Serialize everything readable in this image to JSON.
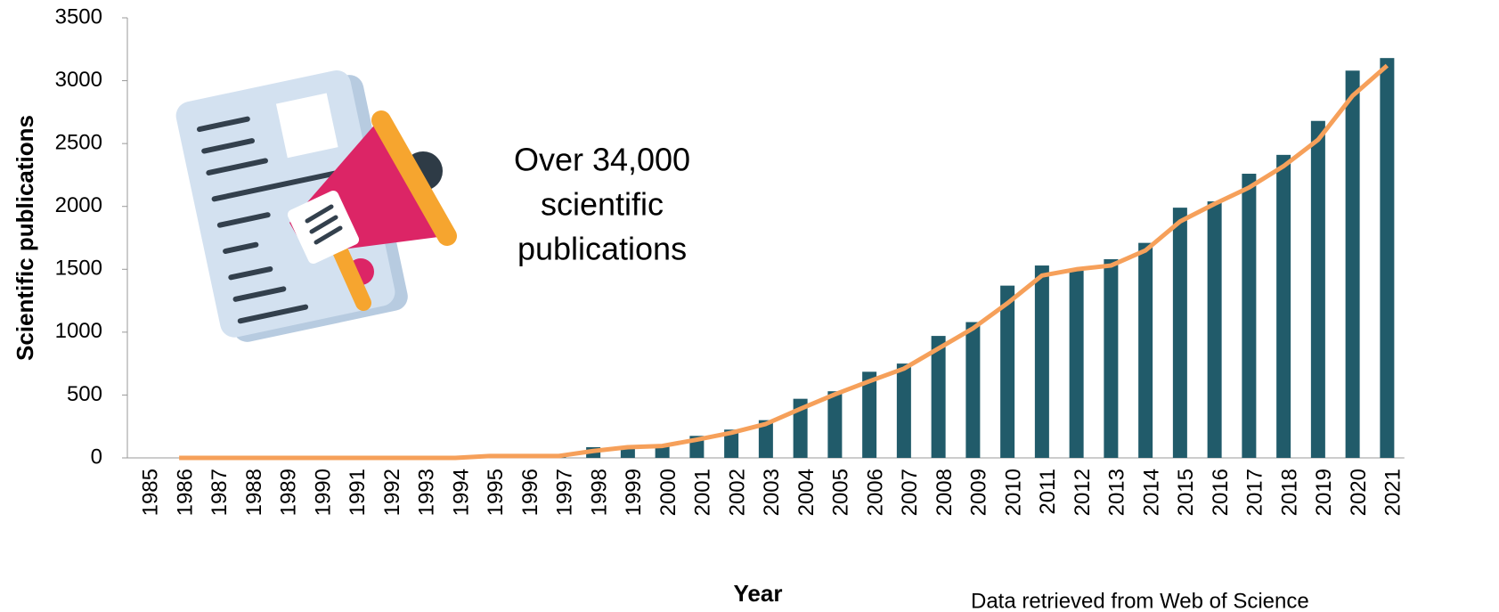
{
  "chart_data": {
    "type": "bar",
    "x_label": "Year",
    "y_label": "Scientific publications",
    "annotation": [
      "Over 34,000",
      "scientific",
      "publications"
    ],
    "source": "Data retrieved from Web of Science",
    "categories": [
      "1985",
      "1986",
      "1987",
      "1988",
      "1989",
      "1990",
      "1991",
      "1992",
      "1993",
      "1994",
      "1995",
      "1996",
      "1997",
      "1998",
      "1999",
      "2000",
      "2001",
      "2002",
      "2003",
      "2004",
      "2005",
      "2006",
      "2007",
      "2008",
      "2009",
      "2010",
      "2011",
      "2012",
      "2013",
      "2014",
      "2015",
      "2016",
      "2017",
      "2018",
      "2019",
      "2020",
      "2021"
    ],
    "series": [
      {
        "type": "bar",
        "color": "#215b6a",
        "values": [
          0,
          0,
          0,
          0,
          0,
          0,
          0,
          0,
          0,
          0,
          5,
          10,
          10,
          85,
          95,
          100,
          175,
          225,
          300,
          470,
          530,
          685,
          750,
          970,
          1080,
          1370,
          1530,
          1500,
          1580,
          1710,
          1990,
          2040,
          2260,
          2410,
          2680,
          3080,
          3180
        ]
      },
      {
        "type": "line",
        "color": "#f6a05a",
        "values": [
          null,
          0,
          0,
          0,
          0,
          0,
          0,
          0,
          0,
          0,
          15,
          15,
          15,
          55,
          85,
          95,
          145,
          200,
          270,
          390,
          505,
          610,
          710,
          870,
          1030,
          1230,
          1450,
          1500,
          1530,
          1650,
          1880,
          2020,
          2150,
          2320,
          2530,
          2880,
          3120
        ]
      }
    ],
    "ylim": [
      0,
      3500
    ],
    "yticks": [
      0,
      500,
      1000,
      1500,
      2000,
      2500,
      3000,
      3500
    ],
    "grid": false
  }
}
